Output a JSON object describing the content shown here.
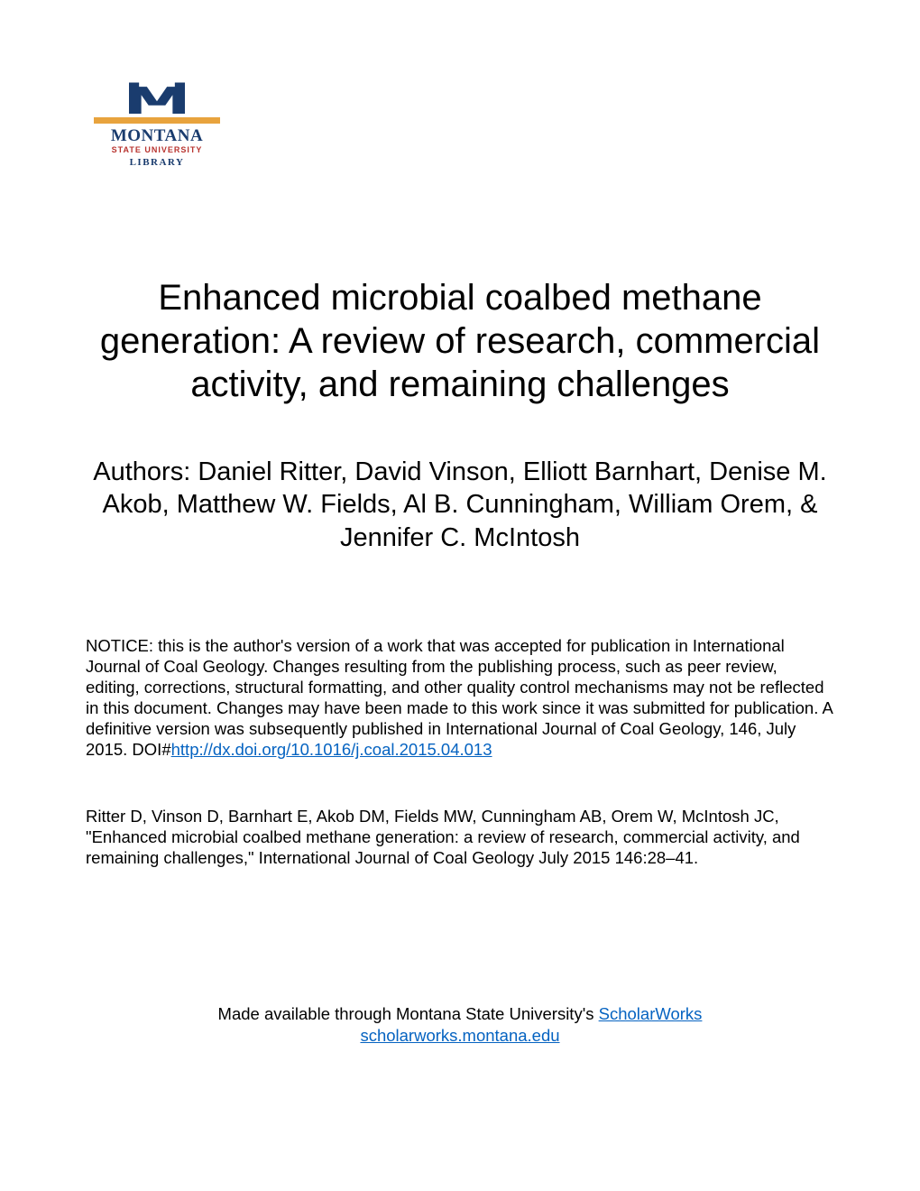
{
  "logo": {
    "line1": "MONTANA",
    "line2": "STATE UNIVERSITY",
    "line3": "LIBRARY",
    "colors": {
      "navy": "#1a3c6e",
      "gold": "#e8a33d",
      "red": "#b8342f"
    }
  },
  "title": "Enhanced microbial coalbed methane generation: A review of research, commercial activity, and remaining challenges",
  "authors": "Authors: Daniel Ritter, David Vinson, Elliott Barnhart, Denise M. Akob, Matthew W. Fields, Al B. Cunningham, William Orem, & Jennifer C. McIntosh",
  "notice": {
    "text": "NOTICE: this is the author's version of a work that was accepted for publication in International Journal of Coal Geology. Changes resulting from the publishing process, such as peer review, editing, corrections, structural formatting, and other quality control mechanisms may not be reflected in this document. Changes may have been made to this work since it was submitted for publication. A definitive version was subsequently published in International Journal of Coal Geology, 146, July 2015. DOI#",
    "link": "http://dx.doi.org/10.1016/j.coal.2015.04.013"
  },
  "citation": "Ritter D, Vinson D, Barnhart E, Akob DM, Fields MW, Cunningham AB, Orem W, McIntosh JC, \"Enhanced microbial coalbed methane generation: a review of research, commercial activity, and remaining challenges,\" International Journal of Coal Geology July 2015 146:28–41.",
  "footer": {
    "text": "Made available through Montana State University's ",
    "link1": "ScholarWorks",
    "link2": "scholarworks.montana.edu"
  },
  "link_color": "#0563c1",
  "typography": {
    "title_fontsize": 40,
    "authors_fontsize": 29,
    "body_fontsize": 18.5
  }
}
